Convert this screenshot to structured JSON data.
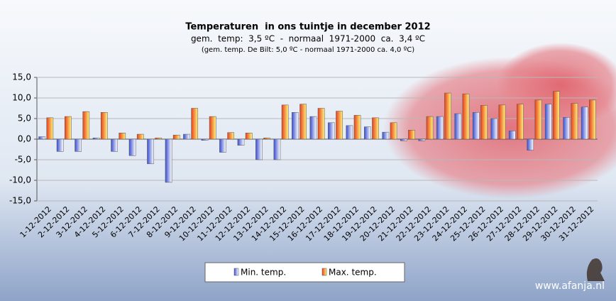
{
  "chart_data": {
    "type": "bar",
    "title": "Temperaturen  in ons tuintje in december 2012",
    "subtitle": "gem.  temp:  3,5 ºC  -  normaal  1971-2000  ca.  3,4 ºC",
    "subtitle2": "(gem. temp. De Bilt: 5,0 ºC - normaal 1971-2000 ca. 4,0 ºC)",
    "watermark": "www.afanja.nl",
    "categories": [
      "1-12-2012",
      "2-12-2012",
      "3-12-2012",
      "4-12-2012",
      "5-12-2012",
      "6-12-2012",
      "7-12-2012",
      "8-12-2012",
      "9-12-2012",
      "10-12-2012",
      "11-12-2012",
      "12-12-2012",
      "13-12-2012",
      "14-12-2012",
      "15-12-2012",
      "16-12-2012",
      "17-12-2012",
      "18-12-2012",
      "19-12-2012",
      "20-12-2012",
      "21-12-2012",
      "22-12-2012",
      "23-12-2012",
      "24-12-2012",
      "25-12-2012",
      "26-12-2012",
      "27-12-2012",
      "28-12-2012",
      "29-12-2012",
      "30-12-2012",
      "31-12-2012"
    ],
    "series": [
      {
        "name": "Min. temp.",
        "color": "#3a4fd0",
        "values": [
          0.6,
          -3.0,
          -3.0,
          0.3,
          -3.0,
          -4.0,
          -6.0,
          -10.5,
          1.2,
          -0.3,
          -3.2,
          -1.5,
          -5.0,
          -5.0,
          6.5,
          5.5,
          4.0,
          3.3,
          3.0,
          1.7,
          -0.4,
          -0.4,
          5.5,
          6.2,
          6.5,
          5.0,
          2.0,
          -2.7,
          8.5,
          5.3,
          7.8
        ]
      },
      {
        "name": "Max. temp.",
        "color": "#e8401c",
        "values": [
          5.2,
          5.5,
          6.7,
          6.5,
          1.5,
          1.2,
          0.3,
          1.0,
          7.5,
          5.5,
          1.6,
          1.5,
          0.3,
          8.3,
          8.5,
          7.5,
          6.8,
          5.8,
          5.2,
          4.0,
          2.2,
          5.5,
          11.2,
          11.0,
          8.2,
          8.3,
          8.5,
          9.5,
          11.6,
          8.7,
          9.5
        ]
      }
    ],
    "ylim": [
      -15,
      15
    ],
    "yticks": [
      {
        "value": -15,
        "label": "-15,0"
      },
      {
        "value": -10,
        "label": "-10,0"
      },
      {
        "value": -5,
        "label": "-5,0"
      },
      {
        "value": 0,
        "label": "0,0"
      },
      {
        "value": 5,
        "label": "5,0"
      },
      {
        "value": 10,
        "label": "10,0"
      },
      {
        "value": 15,
        "label": "15,0"
      }
    ],
    "grid": true,
    "legend": "bottom"
  }
}
